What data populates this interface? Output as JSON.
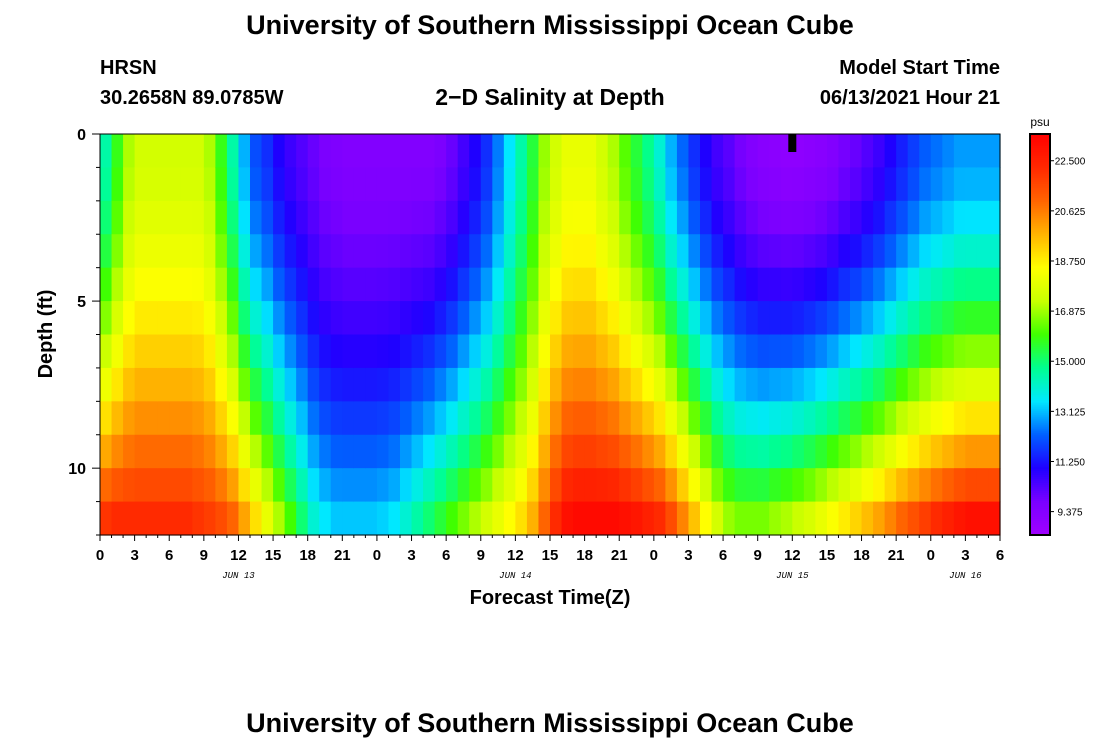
{
  "header": {
    "title": "University of Southern Mississippi Ocean Cube",
    "station": "HRSN",
    "coords": "30.2658N  89.0785W",
    "subtitle": "2−D Salinity at Depth",
    "model_label": "Model Start Time",
    "model_time": "06/13/2021 Hour 21"
  },
  "footer": {
    "title": "University of Southern Mississippi Ocean Cube"
  },
  "chart_data": {
    "type": "heatmap",
    "title": "2−D Salinity at Depth",
    "xlabel": "Forecast Time(Z)",
    "ylabel": "Depth (ft)",
    "x_tick_labels": [
      "0",
      "3",
      "6",
      "9",
      "12",
      "15",
      "18",
      "21",
      "0",
      "3",
      "6",
      "9",
      "12",
      "15",
      "18",
      "21",
      "0",
      "3",
      "6",
      "9",
      "12",
      "15",
      "18",
      "21",
      "0",
      "3",
      "6"
    ],
    "x_hours_range": [
      0,
      78
    ],
    "date_labels": [
      {
        "label": "JUN 13",
        "hour": 12
      },
      {
        "label": "JUN 14",
        "hour": 36
      },
      {
        "label": "JUN 15",
        "hour": 60
      },
      {
        "label": "JUN 16",
        "hour": 75
      }
    ],
    "y_tick_labels": [
      "0",
      "5",
      "10"
    ],
    "ylim": [
      0,
      12
    ],
    "depth_layers_ft": [
      0.5,
      1.5,
      2.5,
      3.5,
      4.5,
      5.5,
      6.5,
      7.5,
      8.5,
      9.5,
      10.5,
      11.5
    ],
    "time_step_hours": 1,
    "surface_salinity_by_hour": [
      14.5,
      15.8,
      17,
      17.5,
      17.5,
      17.5,
      17.5,
      17.5,
      17.5,
      17,
      15.8,
      14.5,
      13,
      12,
      11.6,
      11,
      10.6,
      10.3,
      10,
      9.7,
      9.6,
      9.5,
      9.5,
      9.5,
      9.5,
      9.5,
      9.5,
      9.5,
      9.5,
      9.7,
      10,
      10.5,
      11,
      11.6,
      12.5,
      13.5,
      14.5,
      15.5,
      16.8,
      17.5,
      18,
      18,
      18,
      17.5,
      17,
      16.2,
      15.5,
      14.8,
      14,
      13,
      12.3,
      11.6,
      11,
      10.5,
      10.2,
      9.8,
      9.5,
      9.3,
      9.2,
      9.1,
      9.1,
      9.2,
      9.3,
      9.5,
      9.8,
      10,
      10.3,
      10.6,
      11,
      11.4,
      11.8,
      12.2,
      12.4,
      12.6,
      12.8,
      12.8,
      12.8,
      12.8
    ],
    "bottom_salinity_by_hour": [
      22,
      22.2,
      22.2,
      22.2,
      22.2,
      22.2,
      22.2,
      22.2,
      22,
      21.8,
      21.5,
      21,
      20,
      19,
      18,
      17,
      16,
      15,
      14,
      13.5,
      13.2,
      13.2,
      13.2,
      13.2,
      13.3,
      13.5,
      14,
      14.5,
      15,
      15.5,
      16,
      16.5,
      17,
      17.5,
      18,
      18.5,
      19,
      19.8,
      21,
      22.2,
      23,
      23.2,
      23.2,
      23.2,
      23.2,
      23,
      22.8,
      22.5,
      22.2,
      21.5,
      20.5,
      19.5,
      18.5,
      17.5,
      16.8,
      16.5,
      16.5,
      16.5,
      16.8,
      17,
      17.3,
      17.6,
      18,
      18.4,
      18.8,
      19.2,
      19.6,
      20,
      20.5,
      21,
      21.4,
      21.8,
      22.2,
      22.5,
      22.8,
      23,
      23,
      23
    ],
    "colorbar": {
      "unit": "psu",
      "tick_labels": [
        "22.500",
        "20.625",
        "18.750",
        "16.875",
        "15.000",
        "13.125",
        "11.250",
        "9.375"
      ],
      "range": [
        8.5,
        23.5
      ],
      "colors": [
        "#a000ff",
        "#7a00ff",
        "#1f00ff",
        "#0060ff",
        "#00e8ff",
        "#00ff90",
        "#40ff00",
        "#c8ff00",
        "#ffff00",
        "#ffb400",
        "#ff6400",
        "#ff2800",
        "#ff0000"
      ]
    },
    "marker": {
      "hour": 60,
      "depth_ft": 0
    }
  }
}
